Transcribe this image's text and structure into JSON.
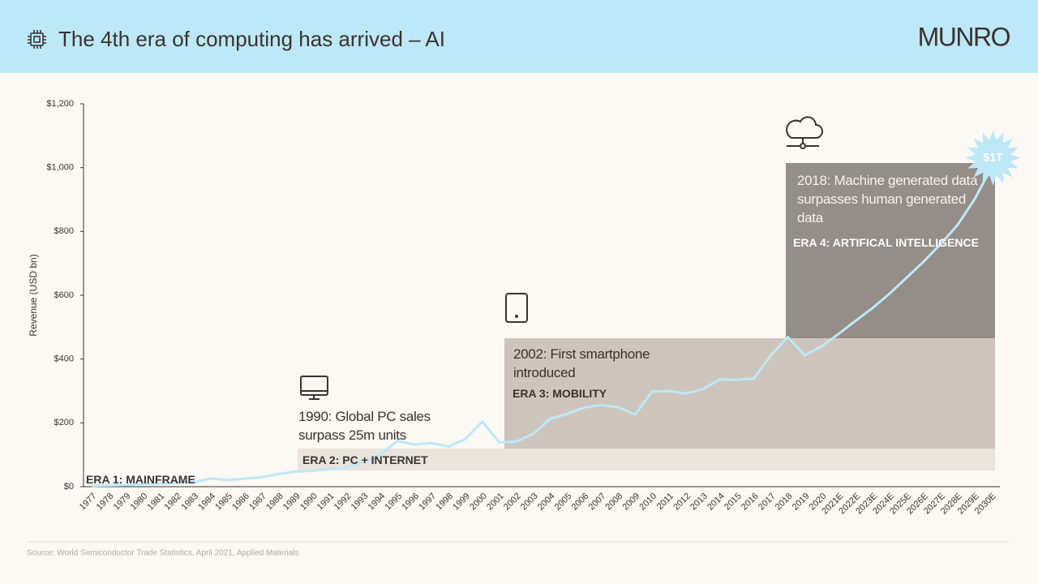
{
  "header": {
    "title": "The 4th era of computing has arrived – AI",
    "logo": "MUNRO"
  },
  "chart_data": {
    "type": "line",
    "y_label": "Revenue  (USD bn)",
    "categories": [
      "1977",
      "1978",
      "1979",
      "1980",
      "1981",
      "1982",
      "1983",
      "1984",
      "1985",
      "1986",
      "1987",
      "1988",
      "1989",
      "1990",
      "1991",
      "1992",
      "1993",
      "1994",
      "1995",
      "1996",
      "1997",
      "1998",
      "1999",
      "2000",
      "2001",
      "2002",
      "2003",
      "2004",
      "2005",
      "2006",
      "2007",
      "2008",
      "2009",
      "2010",
      "2011",
      "2012",
      "2013",
      "2014",
      "2015",
      "2016",
      "2017",
      "2018",
      "2019",
      "2020",
      "2021E",
      "2022E",
      "2023E",
      "2024E",
      "2025E",
      "2026E",
      "2027E",
      "2028E",
      "2029E",
      "2030E"
    ],
    "values": [
      3,
      4,
      5,
      8,
      10,
      12,
      14,
      26,
      21,
      25,
      30,
      40,
      47,
      50,
      55,
      60,
      77,
      100,
      144,
      132,
      137,
      126,
      149,
      204,
      139,
      141,
      166,
      213,
      228,
      248,
      256,
      249,
      226,
      298,
      300,
      292,
      306,
      336,
      335,
      339,
      412,
      469,
      412,
      440,
      479,
      520,
      560,
      605,
      655,
      705,
      760,
      820,
      900,
      1000
    ],
    "value_labels": [
      null,
      null,
      null,
      null,
      null,
      null,
      null,
      null,
      null,
      null,
      null,
      null,
      null,
      null,
      null,
      null,
      null,
      null,
      null,
      null,
      null,
      null,
      null,
      null,
      null,
      null,
      null,
      null,
      null,
      null,
      null,
      null,
      null,
      null,
      null,
      null,
      null,
      null,
      null,
      null,
      null,
      null,
      null,
      null,
      null,
      null,
      null,
      null,
      null,
      null,
      null,
      null,
      null,
      "$1T"
    ],
    "color": "#bde8f8",
    "ylim": [
      0,
      1200
    ],
    "yticks": [
      {
        "value": 0,
        "label": "$0"
      },
      {
        "value": 200,
        "label": "$200"
      },
      {
        "value": 400,
        "label": "$400"
      },
      {
        "value": 600,
        "label": "$600"
      },
      {
        "value": 800,
        "label": "$800"
      },
      {
        "value": 1000,
        "label": "$1,000"
      },
      {
        "value": 1200,
        "label": "$1,200"
      }
    ],
    "eras": [
      {
        "label": "ERA 1: MAINFRAME"
      },
      {
        "label": "ERA 2: PC + INTERNET",
        "note": "1990: Global PC sales surpass 25m units"
      },
      {
        "label": "ERA 3: MOBILITY",
        "note": "2002: First smartphone introduced"
      },
      {
        "label": "ERA 4: ARTIFICAL INTELLIGENCE",
        "note": "2018: Machine generated data surpasses human generated data"
      }
    ]
  },
  "footer": {
    "source": "Source: World Semiconductor Trade Statistics, April 2021, Applied Materials"
  }
}
